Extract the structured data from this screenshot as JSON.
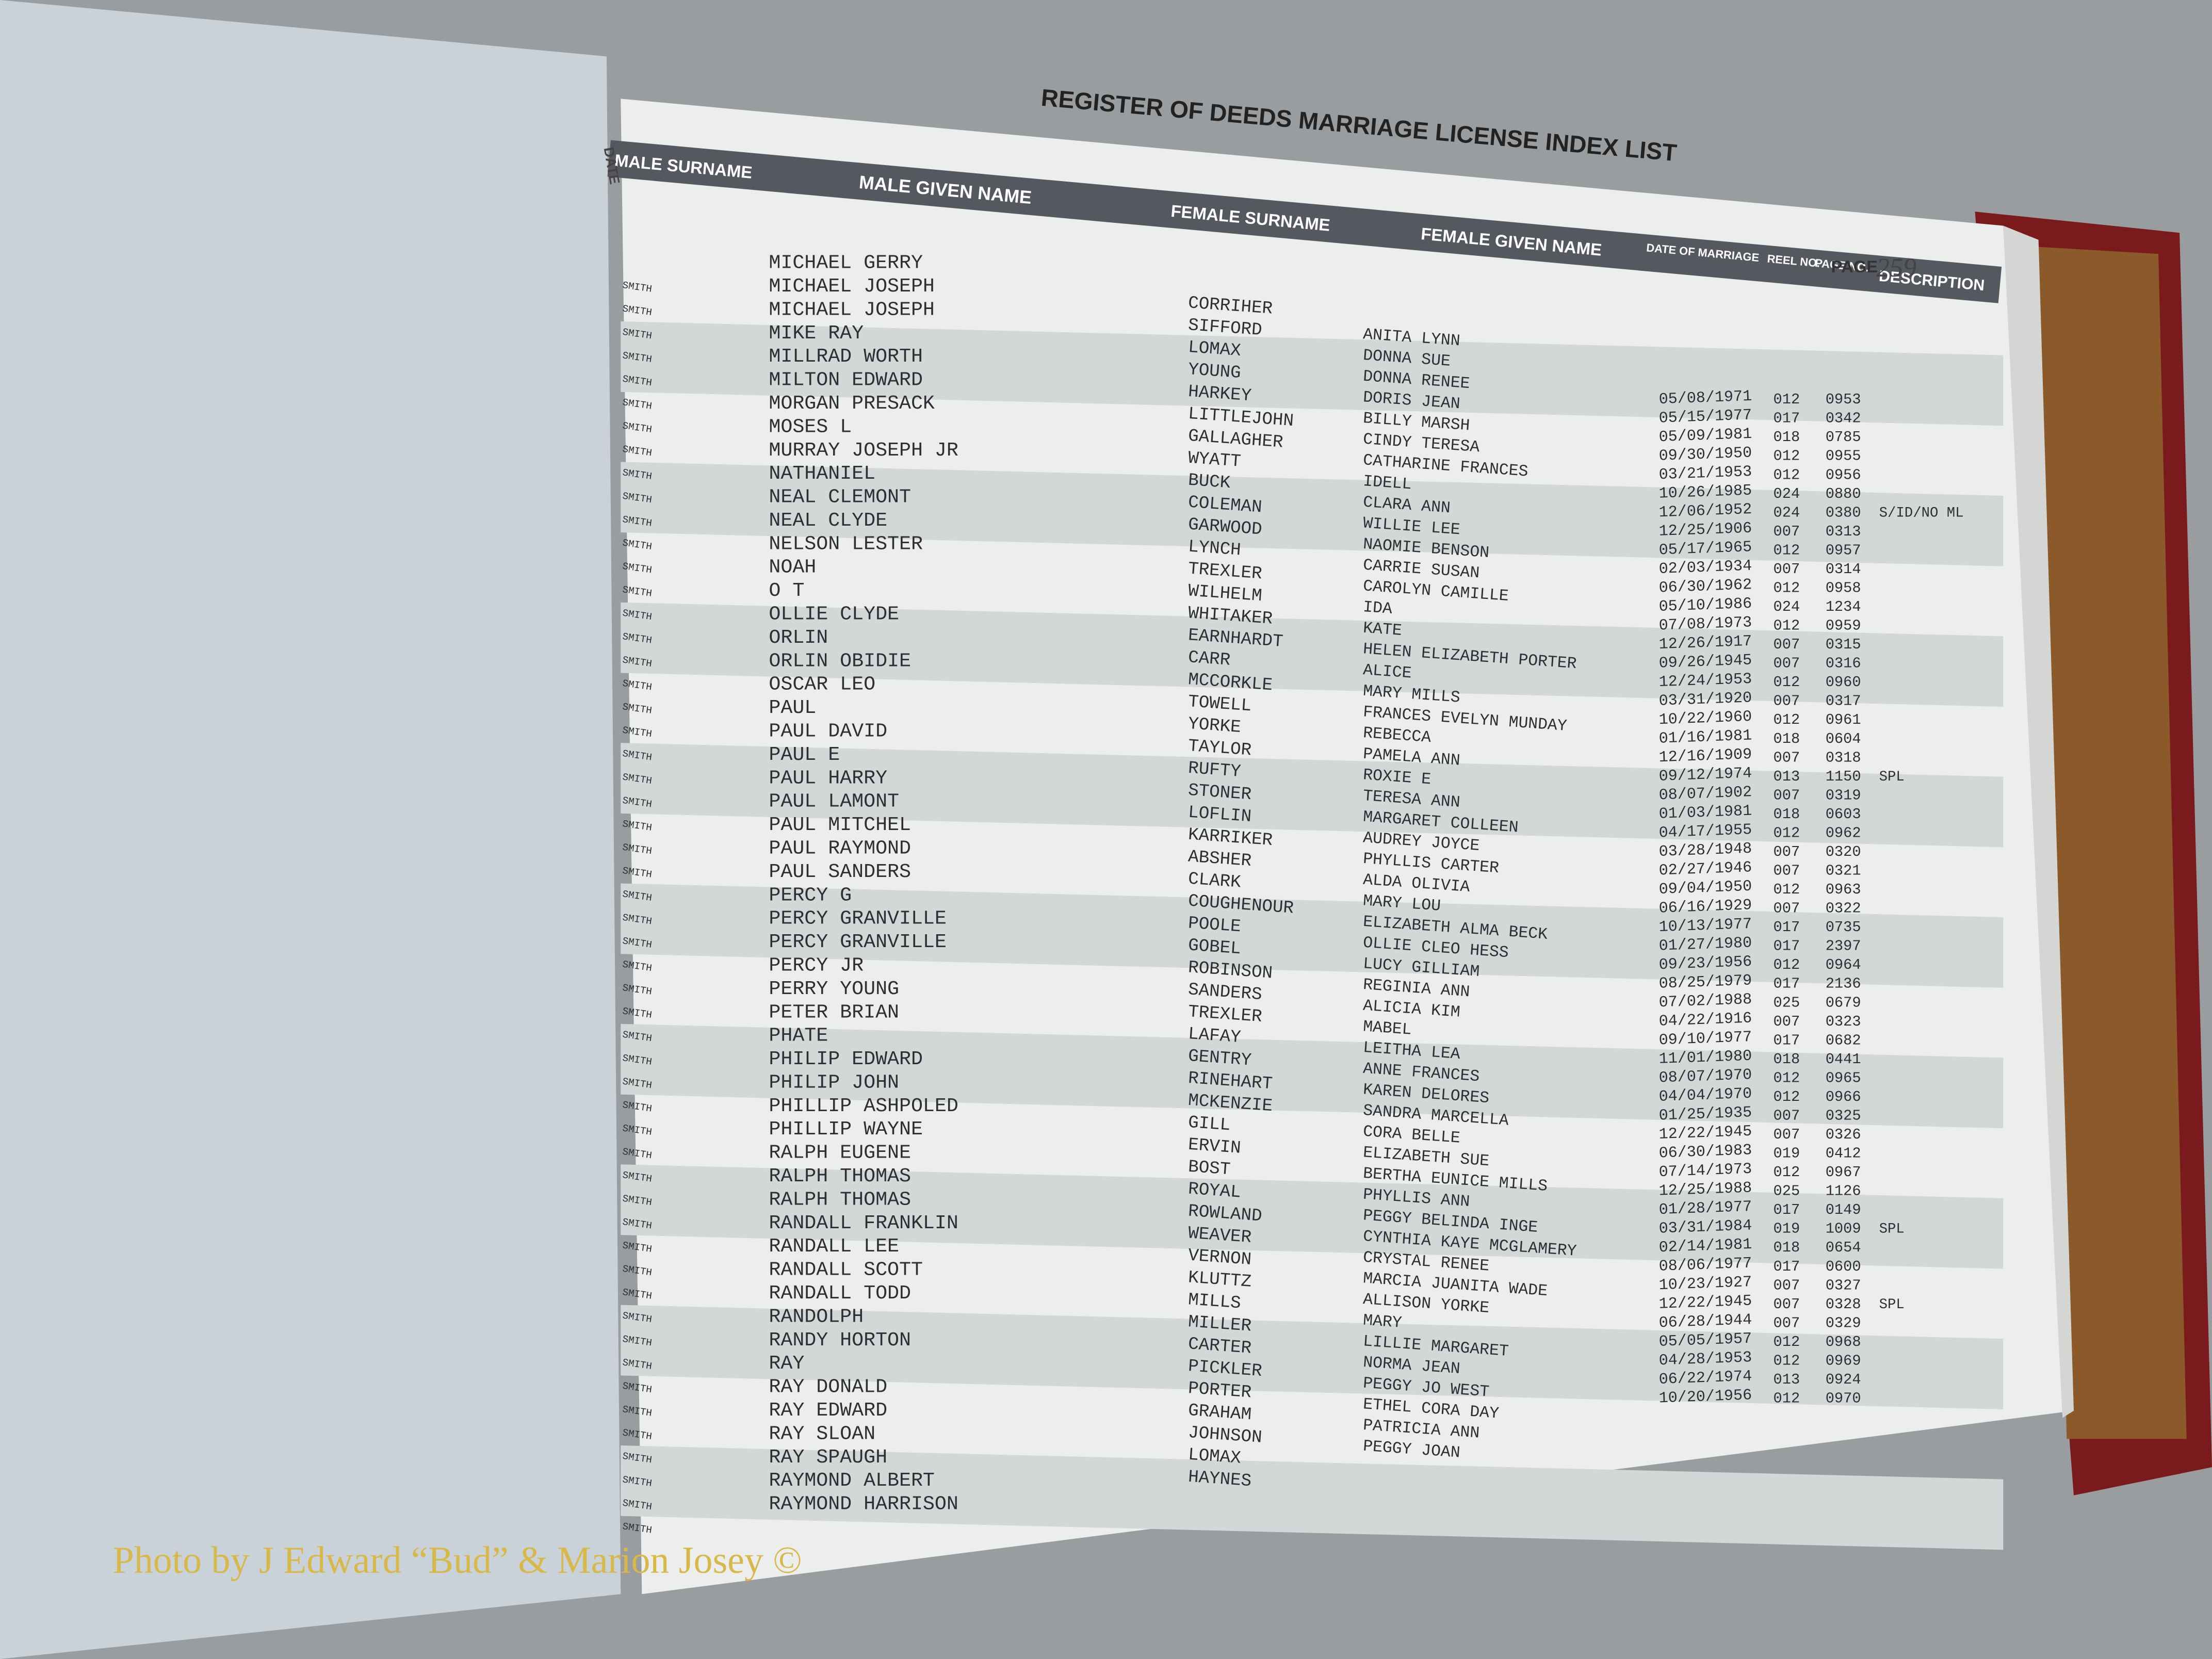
{
  "header": {
    "title": "REGISTER OF DEEDS MARRIAGE LICENSE INDEX LIST",
    "page_label": "PAGE",
    "page_number": "259",
    "date_label": "DATE"
  },
  "columns": {
    "male_surname": "MALE SURNAME",
    "male_given_name": "MALE GIVEN NAME",
    "female_surname": "FEMALE SURNAME",
    "female_given_name": "FEMALE GIVEN NAME",
    "date_of_marriage": "DATE OF MARRIAGE",
    "reel_no": "REEL NO.",
    "page_no": "PAGE NO.",
    "description": "DESCRIPTION"
  },
  "male_surname": "SMITH",
  "male_given_names": [
    "MICHAEL GERRY",
    "MICHAEL JOSEPH",
    "MICHAEL JOSEPH",
    "MIKE RAY",
    "MILLRAD WORTH",
    "MILTON EDWARD",
    "MORGAN PRESACK",
    "MOSES L",
    "MURRAY JOSEPH JR",
    "NATHANIEL",
    "NEAL CLEMONT",
    "NEAL CLYDE",
    "NELSON LESTER",
    "NOAH",
    "O T",
    "OLLIE CLYDE",
    "ORLIN",
    "ORLIN OBIDIE",
    "OSCAR LEO",
    "PAUL",
    "PAUL DAVID",
    "PAUL E",
    "PAUL HARRY",
    "PAUL LAMONT",
    "PAUL MITCHEL",
    "PAUL RAYMOND",
    "PAUL SANDERS",
    "PERCY G",
    "PERCY GRANVILLE",
    "PERCY GRANVILLE",
    "PERCY JR",
    "PERRY YOUNG",
    "PETER BRIAN",
    "PHATE",
    "PHILIP EDWARD",
    "PHILIP JOHN",
    "PHILLIP ASHPOLED",
    "PHILLIP WAYNE",
    "RALPH EUGENE",
    "RALPH THOMAS",
    "RALPH THOMAS",
    "RANDALL FRANKLIN",
    "RANDALL LEE",
    "RANDALL SCOTT",
    "RANDALL TODD",
    "RANDOLPH",
    "RANDY HORTON",
    "RAY",
    "RAY DONALD",
    "RAY EDWARD",
    "RAY SLOAN",
    "RAY SPAUGH",
    "RAYMOND ALBERT",
    "RAYMOND HARRISON"
  ],
  "female_surnames": [
    "CORRIHER",
    "SIFFORD",
    "LOMAX",
    "YOUNG",
    "HARKEY",
    "LITTLEJOHN",
    "GALLAGHER",
    "WYATT",
    "BUCK",
    "COLEMAN",
    "GARWOOD",
    "LYNCH",
    "TREXLER",
    "WILHELM",
    "WHITAKER",
    "EARNHARDT",
    "CARR",
    "MCCORKLE",
    "TOWELL",
    "YORKE",
    "TAYLOR",
    "RUFTY",
    "STONER",
    "LOFLIN",
    "KARRIKER",
    "ABSHER",
    "CLARK",
    "COUGHENOUR",
    "POOLE",
    "GOBEL",
    "ROBINSON",
    "SANDERS",
    "TREXLER",
    "LAFAY",
    "GENTRY",
    "RINEHART",
    "MCKENZIE",
    "GILL",
    "ERVIN",
    "BOST",
    "ROYAL",
    "ROWLAND",
    "WEAVER",
    "VERNON",
    "KLUTTZ",
    "MILLS",
    "MILLER",
    "CARTER",
    "PICKLER",
    "PORTER",
    "GRAHAM",
    "JOHNSON",
    "LOMAX",
    "HAYNES"
  ],
  "female_given_names": [
    "ANITA LYNN",
    "DONNA SUE",
    "DONNA RENEE",
    "DORIS JEAN",
    "BILLY MARSH",
    "CINDY TERESA",
    "CATHARINE FRANCES",
    "IDELL",
    "CLARA ANN",
    "WILLIE LEE",
    "NAOMIE BENSON",
    "CARRIE SUSAN",
    "CAROLYN CAMILLE",
    "IDA",
    "KATE",
    "HELEN ELIZABETH PORTER",
    "ALICE",
    "MARY MILLS",
    "FRANCES EVELYN MUNDAY",
    "REBECCA",
    "PAMELA ANN",
    "ROXIE E",
    "TERESA ANN",
    "MARGARET COLLEEN",
    "AUDREY JOYCE",
    "PHYLLIS CARTER",
    "ALDA OLIVIA",
    "MARY LOU",
    "ELIZABETH ALMA BECK",
    "OLLIE CLEO HESS",
    "LUCY GILLIAM",
    "REGINIA ANN",
    "ALICIA KIM",
    "MABEL",
    "LEITHA LEA",
    "ANNE FRANCES",
    "KAREN DELORES",
    "SANDRA MARCELLA",
    "CORA BELLE",
    "ELIZABETH SUE",
    "BERTHA EUNICE MILLS",
    "PHYLLIS ANN",
    "PEGGY BELINDA INGE",
    "CYNTHIA KAYE MCGLAMERY",
    "CRYSTAL RENEE",
    "MARCIA JUANITA WADE",
    "ALLISON YORKE",
    "MARY",
    "LILLIE MARGARET",
    "NORMA JEAN",
    "PEGGY JO WEST",
    "ETHEL CORA DAY",
    "PATRICIA ANN",
    "PEGGY JOAN"
  ],
  "records": [
    {
      "date": "05/08/1971",
      "reel": "012",
      "page": "0953"
    },
    {
      "date": "05/15/1977",
      "reel": "017",
      "page": "0342"
    },
    {
      "date": "05/09/1981",
      "reel": "018",
      "page": "0785"
    },
    {
      "date": "09/30/1950",
      "reel": "012",
      "page": "0955"
    },
    {
      "date": "03/21/1953",
      "reel": "012",
      "page": "0956"
    },
    {
      "date": "10/26/1985",
      "reel": "024",
      "page": "0880"
    },
    {
      "date": "12/06/1952",
      "reel": "024",
      "page": "0380",
      "description": "S/ID/NO ML"
    },
    {
      "date": "12/25/1906",
      "reel": "007",
      "page": "0313"
    },
    {
      "date": "05/17/1965",
      "reel": "012",
      "page": "0957"
    },
    {
      "date": "02/03/1934",
      "reel": "007",
      "page": "0314"
    },
    {
      "date": "06/30/1962",
      "reel": "012",
      "page": "0958"
    },
    {
      "date": "05/10/1986",
      "reel": "024",
      "page": "1234"
    },
    {
      "date": "07/08/1973",
      "reel": "012",
      "page": "0959"
    },
    {
      "date": "12/26/1917",
      "reel": "007",
      "page": "0315"
    },
    {
      "date": "09/26/1945",
      "reel": "007",
      "page": "0316"
    },
    {
      "date": "12/24/1953",
      "reel": "012",
      "page": "0960"
    },
    {
      "date": "03/31/1920",
      "reel": "007",
      "page": "0317"
    },
    {
      "date": "10/22/1960",
      "reel": "012",
      "page": "0961"
    },
    {
      "date": "01/16/1981",
      "reel": "018",
      "page": "0604"
    },
    {
      "date": "12/16/1909",
      "reel": "007",
      "page": "0318"
    },
    {
      "date": "09/12/1974",
      "reel": "013",
      "page": "1150",
      "description": "SPL"
    },
    {
      "date": "08/07/1902",
      "reel": "007",
      "page": "0319"
    },
    {
      "date": "01/03/1981",
      "reel": "018",
      "page": "0603"
    },
    {
      "date": "04/17/1955",
      "reel": "012",
      "page": "0962"
    },
    {
      "date": "03/28/1948",
      "reel": "007",
      "page": "0320"
    },
    {
      "date": "02/27/1946",
      "reel": "007",
      "page": "0321"
    },
    {
      "date": "09/04/1950",
      "reel": "012",
      "page": "0963"
    },
    {
      "date": "06/16/1929",
      "reel": "007",
      "page": "0322"
    },
    {
      "date": "10/13/1977",
      "reel": "017",
      "page": "0735"
    },
    {
      "date": "01/27/1980",
      "reel": "017",
      "page": "2397"
    },
    {
      "date": "09/23/1956",
      "reel": "012",
      "page": "0964"
    },
    {
      "date": "08/25/1979",
      "reel": "017",
      "page": "2136"
    },
    {
      "date": "07/02/1988",
      "reel": "025",
      "page": "0679"
    },
    {
      "date": "04/22/1916",
      "reel": "007",
      "page": "0323"
    },
    {
      "date": "09/10/1977",
      "reel": "017",
      "page": "0682"
    },
    {
      "date": "11/01/1980",
      "reel": "018",
      "page": "0441"
    },
    {
      "date": "08/07/1970",
      "reel": "012",
      "page": "0965"
    },
    {
      "date": "04/04/1970",
      "reel": "012",
      "page": "0966"
    },
    {
      "date": "01/25/1935",
      "reel": "007",
      "page": "0325"
    },
    {
      "date": "12/22/1945",
      "reel": "007",
      "page": "0326"
    },
    {
      "date": "06/30/1983",
      "reel": "019",
      "page": "0412"
    },
    {
      "date": "07/14/1973",
      "reel": "012",
      "page": "0967"
    },
    {
      "date": "12/25/1988",
      "reel": "025",
      "page": "1126"
    },
    {
      "date": "01/28/1977",
      "reel": "017",
      "page": "0149"
    },
    {
      "date": "03/31/1984",
      "reel": "019",
      "page": "1009",
      "description": "SPL"
    },
    {
      "date": "02/14/1981",
      "reel": "018",
      "page": "0654"
    },
    {
      "date": "08/06/1977",
      "reel": "017",
      "page": "0600"
    },
    {
      "date": "10/23/1927",
      "reel": "007",
      "page": "0327"
    },
    {
      "date": "12/22/1945",
      "reel": "007",
      "page": "0328",
      "description": "SPL"
    },
    {
      "date": "06/28/1944",
      "reel": "007",
      "page": "0329"
    },
    {
      "date": "05/05/1957",
      "reel": "012",
      "page": "0968"
    },
    {
      "date": "04/28/1953",
      "reel": "012",
      "page": "0969"
    },
    {
      "date": "06/22/1974",
      "reel": "013",
      "page": "0924"
    },
    {
      "date": "10/20/1956",
      "reel": "012",
      "page": "0970"
    }
  ],
  "credit": "Photo by J Edward “Bud” & Marion Josey ©"
}
